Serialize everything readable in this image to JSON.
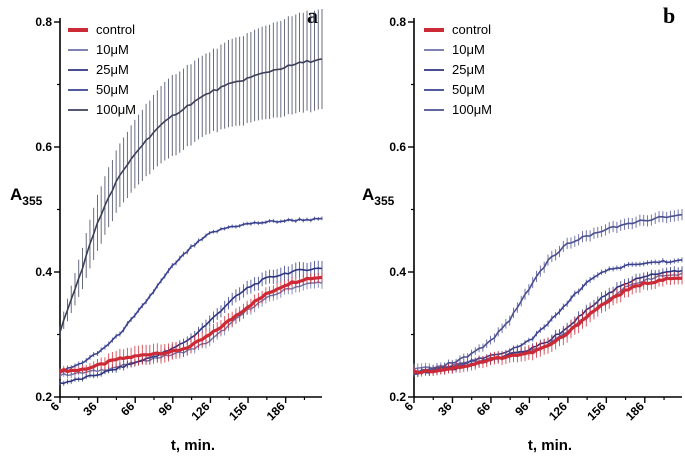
{
  "chart_data": [
    {
      "type": "line",
      "panel_label": "a",
      "ylabel_base": "A",
      "ylabel_sub": "355",
      "xlabel": "t, min.",
      "xlim": [
        6,
        215
      ],
      "ylim": [
        0.2,
        0.8
      ],
      "x_ticks": [
        6,
        36,
        66,
        96,
        126,
        156,
        186
      ],
      "y_ticks": [
        0.2,
        0.4,
        0.6,
        0.8
      ],
      "y_tick_labels": [
        "0.2",
        "0.4",
        "0.6",
        "0.8"
      ],
      "legend_position": "top-left",
      "series": [
        {
          "name": "control",
          "color": "#cc2a36",
          "width": 3.2,
          "x": [
            6,
            21,
            36,
            51,
            66,
            81,
            96,
            111,
            126,
            141,
            156,
            171,
            186,
            201,
            215
          ],
          "y": [
            0.242,
            0.243,
            0.25,
            0.26,
            0.265,
            0.27,
            0.272,
            0.282,
            0.3,
            0.322,
            0.345,
            0.365,
            0.38,
            0.389,
            0.392
          ],
          "err": [
            0.006,
            0.006,
            0.009,
            0.014,
            0.016,
            0.016,
            0.014,
            0.012,
            0.012,
            0.012,
            0.011,
            0.01,
            0.009,
            0.008,
            0.008
          ]
        },
        {
          "name": "10μM",
          "color": "#6b70a8",
          "width": 1.4,
          "x": [
            6,
            21,
            36,
            51,
            66,
            81,
            96,
            111,
            126,
            141,
            156,
            171,
            186,
            201,
            215
          ],
          "y": [
            0.235,
            0.238,
            0.242,
            0.248,
            0.255,
            0.262,
            0.268,
            0.276,
            0.29,
            0.315,
            0.34,
            0.358,
            0.372,
            0.38,
            0.384
          ],
          "err": [
            0.005,
            0.005,
            0.005,
            0.006,
            0.006,
            0.006,
            0.006,
            0.007,
            0.008,
            0.009,
            0.009,
            0.009,
            0.009,
            0.009,
            0.009
          ]
        },
        {
          "name": "25μM",
          "color": "#2e3580",
          "width": 1.6,
          "x": [
            6,
            21,
            36,
            51,
            66,
            81,
            96,
            111,
            126,
            141,
            156,
            171,
            186,
            201,
            215
          ],
          "y": [
            0.222,
            0.228,
            0.236,
            0.245,
            0.255,
            0.265,
            0.277,
            0.295,
            0.322,
            0.352,
            0.375,
            0.39,
            0.398,
            0.404,
            0.406
          ],
          "err": [
            0.004,
            0.004,
            0.004,
            0.005,
            0.005,
            0.005,
            0.006,
            0.007,
            0.009,
            0.01,
            0.011,
            0.011,
            0.012,
            0.012,
            0.012
          ]
        },
        {
          "name": "50μM",
          "color": "#3a4290",
          "width": 1.6,
          "x": [
            6,
            21,
            36,
            51,
            66,
            81,
            96,
            111,
            126,
            141,
            156,
            171,
            186,
            201,
            215
          ],
          "y": [
            0.24,
            0.252,
            0.27,
            0.296,
            0.33,
            0.37,
            0.41,
            0.44,
            0.462,
            0.472,
            0.477,
            0.48,
            0.482,
            0.484,
            0.484
          ],
          "err": [
            0.004,
            0.004,
            0.004,
            0.004,
            0.004,
            0.004,
            0.004,
            0.004,
            0.003,
            0.003,
            0.003,
            0.003,
            0.003,
            0.003,
            0.003
          ]
        },
        {
          "name": "100μM",
          "color": "#3b3f58",
          "width": 1.6,
          "x": [
            6,
            21,
            36,
            51,
            66,
            81,
            96,
            111,
            126,
            141,
            156,
            171,
            186,
            201,
            215
          ],
          "y": [
            0.305,
            0.39,
            0.48,
            0.545,
            0.59,
            0.625,
            0.65,
            0.67,
            0.688,
            0.7,
            0.71,
            0.72,
            0.728,
            0.736,
            0.74
          ],
          "err": [
            0.01,
            0.03,
            0.045,
            0.05,
            0.055,
            0.06,
            0.065,
            0.065,
            0.065,
            0.07,
            0.072,
            0.075,
            0.078,
            0.08,
            0.08
          ]
        }
      ]
    },
    {
      "type": "line",
      "panel_label": "b",
      "ylabel_base": "A",
      "ylabel_sub": "355",
      "xlabel": "t, min.",
      "xlim": [
        6,
        215
      ],
      "ylim": [
        0.2,
        0.8
      ],
      "x_ticks": [
        6,
        36,
        66,
        96,
        126,
        156,
        186
      ],
      "y_ticks": [
        0.2,
        0.4,
        0.6,
        0.8
      ],
      "y_tick_labels": [
        "0.2",
        "0.4",
        "0.6",
        "0.8"
      ],
      "legend_position": "top-left",
      "series": [
        {
          "name": "control",
          "color": "#cc2a36",
          "width": 3.2,
          "x": [
            6,
            21,
            36,
            51,
            66,
            81,
            96,
            111,
            126,
            141,
            156,
            171,
            186,
            201,
            215
          ],
          "y": [
            0.24,
            0.242,
            0.246,
            0.252,
            0.26,
            0.266,
            0.27,
            0.282,
            0.302,
            0.33,
            0.352,
            0.37,
            0.382,
            0.388,
            0.39
          ],
          "err": [
            0.006,
            0.007,
            0.008,
            0.009,
            0.01,
            0.011,
            0.012,
            0.013,
            0.014,
            0.014,
            0.013,
            0.012,
            0.011,
            0.01,
            0.01
          ]
        },
        {
          "name": "10μM",
          "color": "#6b70a8",
          "width": 1.4,
          "x": [
            6,
            21,
            36,
            51,
            66,
            81,
            96,
            111,
            126,
            141,
            156,
            171,
            186,
            201,
            215
          ],
          "y": [
            0.245,
            0.247,
            0.25,
            0.256,
            0.262,
            0.268,
            0.274,
            0.285,
            0.305,
            0.33,
            0.355,
            0.375,
            0.388,
            0.394,
            0.396
          ],
          "err": [
            0.008,
            0.006,
            0.006,
            0.006,
            0.006,
            0.006,
            0.007,
            0.008,
            0.009,
            0.009,
            0.009,
            0.009,
            0.009,
            0.008,
            0.008
          ]
        },
        {
          "name": "25μM",
          "color": "#2e3580",
          "width": 1.6,
          "x": [
            6,
            21,
            36,
            51,
            66,
            81,
            96,
            111,
            126,
            141,
            156,
            171,
            186,
            201,
            215
          ],
          "y": [
            0.238,
            0.24,
            0.245,
            0.252,
            0.26,
            0.268,
            0.276,
            0.29,
            0.312,
            0.34,
            0.364,
            0.382,
            0.394,
            0.4,
            0.402
          ],
          "err": [
            0.005,
            0.005,
            0.005,
            0.006,
            0.006,
            0.006,
            0.006,
            0.007,
            0.008,
            0.008,
            0.008,
            0.008,
            0.007,
            0.007,
            0.007
          ]
        },
        {
          "name": "50μM",
          "color": "#3a4290",
          "width": 1.6,
          "x": [
            6,
            21,
            36,
            51,
            66,
            81,
            96,
            111,
            126,
            141,
            156,
            171,
            186,
            201,
            215
          ],
          "y": [
            0.24,
            0.244,
            0.25,
            0.258,
            0.266,
            0.275,
            0.29,
            0.318,
            0.352,
            0.385,
            0.402,
            0.41,
            0.414,
            0.417,
            0.418
          ],
          "err": [
            0.004,
            0.004,
            0.004,
            0.004,
            0.004,
            0.004,
            0.004,
            0.005,
            0.005,
            0.005,
            0.004,
            0.004,
            0.004,
            0.004,
            0.004
          ]
        },
        {
          "name": "100μM",
          "color": "#4b5090",
          "width": 1.6,
          "x": [
            6,
            21,
            36,
            51,
            66,
            81,
            96,
            111,
            126,
            141,
            156,
            171,
            186,
            201,
            215
          ],
          "y": [
            0.24,
            0.245,
            0.255,
            0.268,
            0.29,
            0.325,
            0.375,
            0.42,
            0.445,
            0.458,
            0.468,
            0.476,
            0.483,
            0.488,
            0.49
          ],
          "err": [
            0.005,
            0.005,
            0.005,
            0.006,
            0.007,
            0.008,
            0.009,
            0.009,
            0.009,
            0.009,
            0.009,
            0.009,
            0.009,
            0.009,
            0.009
          ]
        }
      ]
    }
  ]
}
